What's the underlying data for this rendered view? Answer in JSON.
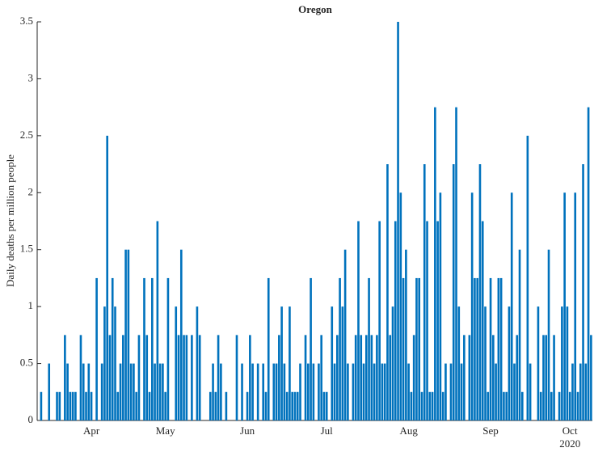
{
  "chart_data": {
    "type": "bar",
    "title": "Oregon",
    "y_label": "Daily deaths per million people",
    "x_year_label": "2020",
    "categories": [
      null,
      null,
      null,
      null,
      null,
      null,
      null,
      null,
      null,
      null,
      null,
      null,
      null,
      null,
      null,
      null,
      null,
      null,
      null,
      null,
      "Apr",
      null,
      null,
      null,
      null,
      null,
      null,
      null,
      null,
      null,
      null,
      null,
      null,
      null,
      null,
      null,
      null,
      null,
      null,
      null,
      null,
      null,
      null,
      null,
      null,
      null,
      null,
      null,
      "May",
      null,
      null,
      null,
      null,
      null,
      null,
      null,
      null,
      null,
      null,
      null,
      null,
      null,
      null,
      null,
      null,
      null,
      null,
      null,
      null,
      null,
      null,
      null,
      null,
      null,
      null,
      null,
      null,
      null,
      null,
      "Jun",
      null,
      null,
      null,
      null,
      null,
      null,
      null,
      null,
      null,
      null,
      null,
      null,
      null,
      null,
      null,
      null,
      null,
      null,
      null,
      null,
      null,
      null,
      null,
      null,
      null,
      null,
      null,
      null,
      null,
      "Jul",
      null,
      null,
      null,
      null,
      null,
      null,
      null,
      null,
      null,
      null,
      null,
      null,
      null,
      null,
      null,
      null,
      null,
      null,
      null,
      null,
      null,
      null,
      null,
      null,
      null,
      null,
      null,
      null,
      null,
      null,
      "Aug",
      null,
      null,
      null,
      null,
      null,
      null,
      null,
      null,
      null,
      null,
      null,
      null,
      null,
      null,
      null,
      null,
      null,
      null,
      null,
      null,
      null,
      null,
      null,
      null,
      null,
      null,
      null,
      null,
      null,
      null,
      "Sep",
      null,
      null,
      null,
      null,
      null,
      null,
      null,
      null,
      null,
      null,
      null,
      null,
      null,
      null,
      null,
      null,
      null,
      null,
      null,
      null,
      null,
      null,
      null,
      null,
      null,
      null,
      null,
      null,
      null,
      "Oct",
      null,
      null,
      null,
      null,
      null,
      null,
      null,
      null
    ],
    "values": [
      0,
      0.25,
      0,
      0,
      0.5,
      0,
      0,
      0.25,
      0.25,
      0,
      0.75,
      0.5,
      0.25,
      0.25,
      0.25,
      0,
      0.75,
      0.5,
      0.25,
      0.5,
      0.25,
      0,
      1.25,
      0,
      0.5,
      1,
      2.5,
      0.75,
      1.25,
      1,
      0.25,
      0.5,
      0.75,
      1.5,
      1.5,
      0.5,
      0.5,
      0.25,
      0.75,
      0,
      1.25,
      0.75,
      0.25,
      1.25,
      0.5,
      1.75,
      0.5,
      0.5,
      0.25,
      1.25,
      0,
      0,
      1,
      0.75,
      1.5,
      0.75,
      0.75,
      0,
      0.75,
      0,
      1,
      0.75,
      0,
      0,
      0,
      0.25,
      0.5,
      0.25,
      0.75,
      0.5,
      0,
      0.25,
      0,
      0,
      0,
      0.75,
      0,
      0.5,
      0,
      0.25,
      0.75,
      0.5,
      0,
      0.5,
      0,
      0.5,
      0.25,
      1.25,
      0,
      0.5,
      0.5,
      0.75,
      1,
      0.5,
      0.25,
      1,
      0.25,
      0.25,
      0.25,
      0.5,
      0,
      0.75,
      0.5,
      1.25,
      0.5,
      0,
      0.5,
      0.75,
      0.25,
      0.25,
      0,
      1,
      0.5,
      0.75,
      1.25,
      1,
      1.5,
      0.5,
      0,
      0.5,
      0.75,
      1.75,
      0.75,
      0.5,
      0.75,
      1.25,
      0.75,
      0.5,
      0.75,
      1.75,
      0.5,
      0.5,
      2.25,
      0.75,
      1,
      1.75,
      3.5,
      2,
      1.25,
      1.5,
      0.5,
      0.25,
      0.75,
      1.25,
      1.25,
      0.25,
      2.25,
      1.75,
      0.25,
      0.25,
      2.75,
      1.75,
      2,
      0.25,
      0.5,
      0,
      0.5,
      2.25,
      2.75,
      1,
      0.5,
      0.75,
      0,
      0.75,
      2,
      1.25,
      1.25,
      2.25,
      1.75,
      1,
      0.25,
      1.25,
      0.75,
      0.5,
      1.25,
      1.25,
      0.25,
      0.25,
      1,
      2,
      0.5,
      0.75,
      1.5,
      0.25,
      0,
      2.5,
      0.5,
      0,
      0,
      1,
      0.25,
      0.75,
      0.75,
      1.5,
      0.25,
      0.75,
      0,
      0.25,
      1,
      2,
      1,
      0.25,
      0.5,
      2,
      0.25,
      0.5,
      2.25,
      0.5,
      2.75,
      0.75
    ],
    "color": "#0072bd",
    "ylim": [
      0,
      3.5
    ],
    "yticks": [
      0,
      0.5,
      1,
      1.5,
      2,
      2.5,
      3,
      3.5
    ],
    "grid": false
  }
}
